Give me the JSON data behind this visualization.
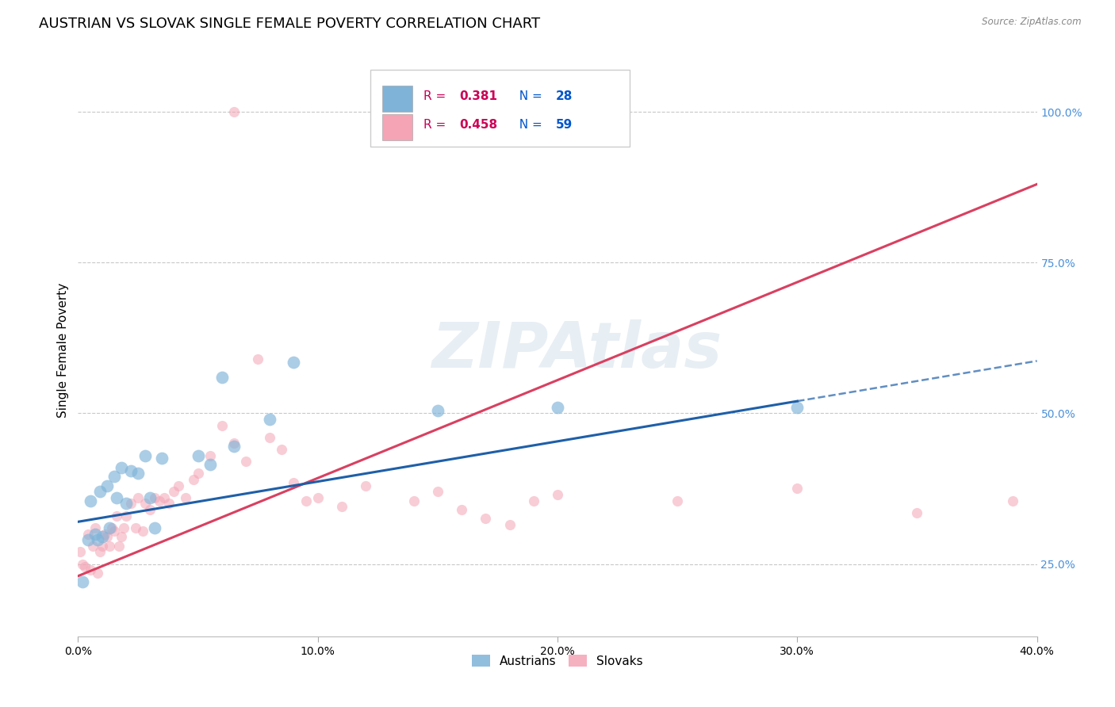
{
  "title": "AUSTRIAN VS SLOVAK SINGLE FEMALE POVERTY CORRELATION CHART",
  "source": "Source: ZipAtlas.com",
  "ylabel": "Single Female Poverty",
  "watermark": "ZIPAtlas",
  "xlim": [
    0.0,
    0.4
  ],
  "ylim": [
    0.13,
    1.08
  ],
  "xticks": [
    0.0,
    0.1,
    0.2,
    0.3,
    0.4
  ],
  "xtick_labels": [
    "0.0%",
    "10.0%",
    "20.0%",
    "30.0%",
    "40.0%"
  ],
  "yticks_right": [
    0.25,
    0.5,
    0.75,
    1.0
  ],
  "ytick_labels_right": [
    "25.0%",
    "50.0%",
    "75.0%",
    "100.0%"
  ],
  "blue_r": 0.381,
  "blue_n": 28,
  "pink_r": 0.458,
  "pink_n": 59,
  "blue_scatter_color": "#7fb3d8",
  "pink_scatter_color": "#f4a4b5",
  "blue_line_color": "#1e5fa8",
  "pink_line_color": "#d94060",
  "right_axis_color": "#4a90d9",
  "background_color": "#ffffff",
  "grid_color": "#c8c8c8",
  "austrians_x": [
    0.002,
    0.004,
    0.005,
    0.007,
    0.008,
    0.009,
    0.01,
    0.012,
    0.013,
    0.015,
    0.016,
    0.018,
    0.02,
    0.022,
    0.025,
    0.028,
    0.03,
    0.032,
    0.035,
    0.05,
    0.055,
    0.06,
    0.065,
    0.08,
    0.09,
    0.15,
    0.2,
    0.3
  ],
  "austrians_y": [
    0.22,
    0.29,
    0.355,
    0.3,
    0.29,
    0.37,
    0.295,
    0.38,
    0.31,
    0.395,
    0.36,
    0.41,
    0.35,
    0.405,
    0.4,
    0.43,
    0.36,
    0.31,
    0.425,
    0.43,
    0.415,
    0.56,
    0.445,
    0.49,
    0.585,
    0.505,
    0.51,
    0.51
  ],
  "slovaks_x": [
    0.001,
    0.002,
    0.003,
    0.004,
    0.005,
    0.006,
    0.007,
    0.008,
    0.009,
    0.01,
    0.011,
    0.012,
    0.013,
    0.014,
    0.015,
    0.016,
    0.017,
    0.018,
    0.019,
    0.02,
    0.022,
    0.024,
    0.025,
    0.027,
    0.028,
    0.03,
    0.032,
    0.034,
    0.036,
    0.038,
    0.04,
    0.042,
    0.045,
    0.048,
    0.05,
    0.055,
    0.06,
    0.065,
    0.07,
    0.075,
    0.08,
    0.085,
    0.09,
    0.095,
    0.1,
    0.11,
    0.12,
    0.14,
    0.15,
    0.16,
    0.17,
    0.18,
    0.19,
    0.2,
    0.25,
    0.3,
    0.35,
    0.39,
    0.065
  ],
  "slovaks_y": [
    0.27,
    0.25,
    0.245,
    0.3,
    0.24,
    0.28,
    0.31,
    0.235,
    0.27,
    0.28,
    0.3,
    0.295,
    0.28,
    0.31,
    0.305,
    0.33,
    0.28,
    0.295,
    0.31,
    0.33,
    0.35,
    0.31,
    0.36,
    0.305,
    0.35,
    0.34,
    0.36,
    0.355,
    0.36,
    0.35,
    0.37,
    0.38,
    0.36,
    0.39,
    0.4,
    0.43,
    0.48,
    0.45,
    0.42,
    0.59,
    0.46,
    0.44,
    0.385,
    0.355,
    0.36,
    0.345,
    0.38,
    0.355,
    0.37,
    0.34,
    0.325,
    0.315,
    0.355,
    0.365,
    0.355,
    0.375,
    0.335,
    0.355,
    1.0
  ],
  "austrians_size": 130,
  "slovaks_size": 90,
  "blue_alpha": 0.65,
  "pink_alpha": 0.55,
  "title_fontsize": 13,
  "ylabel_fontsize": 11,
  "tick_fontsize": 10,
  "legend_fontsize": 11,
  "legend_r_color": "#cc0055",
  "legend_n_color": "#0055cc"
}
